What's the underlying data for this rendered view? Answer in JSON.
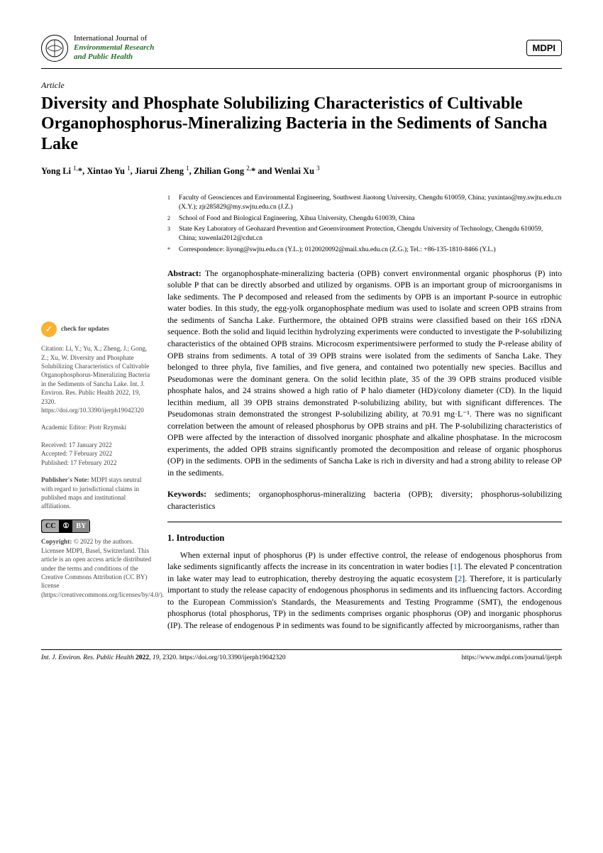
{
  "journal": {
    "line1": "International Journal of",
    "line2": "Environmental Research",
    "line3": "and Public Health",
    "publisher": "MDPI"
  },
  "article": {
    "type": "Article",
    "title": "Diversity and Phosphate Solubilizing Characteristics of Cultivable Organophosphorus-Mineralizing Bacteria in the Sediments of Sancha Lake",
    "authors_html": "Yong Li <sup>1,</sup>*, Xintao Yu <sup>1</sup>, Jiarui Zheng <sup>1</sup>, Zhilian Gong <sup>2,</sup>* and Wenlai Xu <sup>3</sup>"
  },
  "affiliations": [
    {
      "num": "1",
      "text": "Faculty of Geosciences and Environmental Engineering, Southwest Jiaotong University, Chengdu 610059, China; yuxintao@my.swjtu.edu.cn (X.Y.); zjr285829@my.swjtu.edu.cn (J.Z.)"
    },
    {
      "num": "2",
      "text": "School of Food and Biological Engineering, Xihua University, Chengdu 610039, China"
    },
    {
      "num": "3",
      "text": "State Key Laboratory of Geohazard Prevention and Geoenvironment Protection, Chengdu University of Technology, Chengdu 610059, China; xuwenlai2012@cdut.cn"
    },
    {
      "num": "*",
      "text": "Correspondence: liyong@swjtu.edu.cn (Y.L.); 0120020092@mail.xhu.edu.cn (Z.G.); Tel.: +86-135-1810-8466 (Y.L.)"
    }
  ],
  "abstract": "The organophosphate-mineralizing bacteria (OPB) convert environmental organic phosphorus (P) into soluble P that can be directly absorbed and utilized by organisms. OPB is an important group of microorganisms in lake sediments. The P decomposed and released from the sediments by OPB is an important P-source in eutrophic water bodies. In this study, the egg-yolk organophosphate medium was used to isolate and screen OPB strains from the sediments of Sancha Lake. Furthermore, the obtained OPB strains were classified based on their 16S rDNA sequence. Both the solid and liquid lecithin hydrolyzing experiments were conducted to investigate the P-solubilizing characteristics of the obtained OPB strains. Microcosm experimentsiwere performed to study the P-release ability of OPB strains from sediments. A total of 39 OPB strains were isolated from the sediments of Sancha Lake. They belonged to three phyla, five families, and five genera, and contained two potentially new species. Bacillus and Pseudomonas were the dominant genera. On the solid lecithin plate, 35 of the 39 OPB strains produced visible phosphate halos, and 24 strains showed a high ratio of P halo diameter (HD)/colony diameter (CD). In the liquid lecithin medium, all 39 OPB strains demonstrated P-solubilizing ability, but with significant differences. The Pseudomonas strain demonstrated the strongest P-solubilizing ability, at 70.91 mg·L⁻¹. There was no significant correlation between the amount of released phosphorus by OPB strains and pH. The P-solubilizing characteristics of OPB were affected by the interaction of dissolved inorganic phosphate and alkaline phosphatase. In the microcosm experiments, the added OPB strains significantly promoted the decomposition and release of organic phosphorus (OP) in the sediments. OPB in the sediments of Sancha Lake is rich in diversity and had a strong ability to release OP in the sediments.",
  "keywords": "sediments; organophosphorus-mineralizing bacteria (OPB); diversity; phosphorus-solubilizing characteristics",
  "sidebar": {
    "check_updates": "check for updates",
    "citation": "Citation: Li, Y.; Yu, X.; Zheng, J.; Gong, Z.; Xu, W. Diversity and Phosphate Solubilizing Characteristics of Cultivable Organophosphorus-Mineralizing Bacteria in the Sediments of Sancha Lake. Int. J. Environ. Res. Public Health 2022, 19, 2320. https://doi.org/10.3390/ijerph19042320",
    "editor": "Academic Editor: Piotr Rzymski",
    "dates": "Received: 17 January 2022\nAccepted: 7 February 2022\nPublished: 17 February 2022",
    "note": "Publisher's Note: MDPI stays neutral with regard to jurisdictional claims in published maps and institutional affiliations.",
    "copyright": "Copyright: © 2022 by the authors. Licensee MDPI, Basel, Switzerland. This article is an open access article distributed under the terms and conditions of the Creative Commons Attribution (CC BY) license (https://creativecommons.org/licenses/by/4.0/)."
  },
  "introduction": {
    "heading": "1. Introduction",
    "text": "When external input of phosphorus (P) is under effective control, the release of endogenous phosphorus from lake sediments significantly affects the increase in its concentration in water bodies [1]. The elevated P concentration in lake water may lead to eutrophication, thereby destroying the aquatic ecosystem [2]. Therefore, it is particularly important to study the release capacity of endogenous phosphorus in sediments and its influencing factors. According to the European Commission's Standards, the Measurements and Testing Programme (SMT), the endogenous phosphorus (total phosphorus, TP) in the sediments comprises organic phosphorus (OP) and inorganic phosphorus (IP). The release of endogenous P in sediments was found to be significantly affected by microorganisms, rather than"
  },
  "footer": {
    "left": "Int. J. Environ. Res. Public Health 2022, 19, 2320. https://doi.org/10.3390/ijerph19042320",
    "right": "https://www.mdpi.com/journal/ijerph"
  }
}
